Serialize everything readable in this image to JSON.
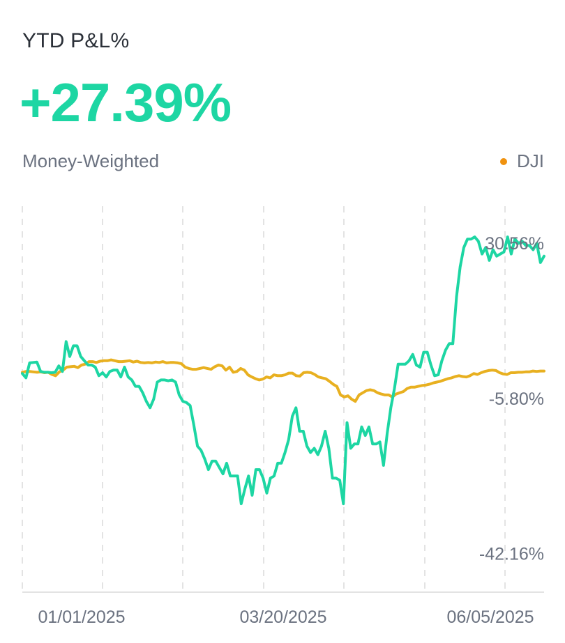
{
  "header": {
    "title": "YTD P&L%",
    "value": "+27.39%",
    "subtitle": "Money-Weighted"
  },
  "legend": {
    "label": "DJI",
    "color": "#f0920e"
  },
  "colors": {
    "portfolio": "#1dd6a3",
    "benchmark": "#e8b020",
    "grid": "#e3e3e3",
    "baseline": "#e3e3e3",
    "value_text": "#1dd6a3"
  },
  "chart_data": {
    "type": "line",
    "x_tick_labels": [
      "01/01/2025",
      "03/20/2025",
      "06/05/2025"
    ],
    "reference_labels": [
      {
        "text": "30.56%",
        "value": 30.56
      },
      {
        "text": "-5.80%",
        "value": -5.8
      },
      {
        "text": "-42.16%",
        "value": -42.16
      }
    ],
    "ylim": [
      -45,
      33
    ],
    "grid": "vertical dashed",
    "legend_placement": "top-right",
    "series": [
      {
        "values": [
          0.0,
          -1.0,
          2.5,
          2.6,
          2.7,
          0.5,
          0.3,
          0.3,
          0.2,
          0.3,
          1.8,
          0.5,
          7.5,
          4.0,
          6.5,
          6.5,
          4.0,
          3.0,
          2.0,
          2.0,
          1.5,
          -0.5,
          0.2,
          -0.8,
          0.5,
          0.8,
          0.8,
          -0.8,
          1.5,
          -0.8,
          -1.5,
          -3.0,
          -3.0,
          -4.5,
          -6.5,
          -8.0,
          -6.0,
          -2.0,
          -1.5,
          -1.5,
          -1.7,
          -1.5,
          -2.0,
          -5.0,
          -6.5,
          -6.8,
          -7.5,
          -12.0,
          -17.0,
          -18.0,
          -20.0,
          -22.5,
          -20.5,
          -20.5,
          -22.0,
          -23.5,
          -21.0,
          -24.0,
          -24.0,
          -24.0,
          -30.5,
          -27.0,
          -24.0,
          -28.5,
          -22.5,
          -22.5,
          -24.5,
          -28.0,
          -24.5,
          -24.0,
          -21.0,
          -21.0,
          -18.5,
          -15.5,
          -10.0,
          -8.0,
          -13.5,
          -13.5,
          -17.0,
          -18.5,
          -17.5,
          -19.0,
          -17.0,
          -13.5,
          -17.5,
          -24.5,
          -24.5,
          -25.0,
          -30.5,
          -11.5,
          -17.5,
          -16.5,
          -16.5,
          -12.5,
          -14.5,
          -12.5,
          -16.5,
          -16.5,
          -16.0,
          -21.5,
          -14.0,
          -8.0,
          -3.5,
          2.2,
          2.2,
          2.2,
          3.0,
          4.5,
          2.0,
          1.5,
          5.0,
          5.0,
          2.0,
          -0.5,
          -0.3,
          3.0,
          5.5,
          7.0,
          7.0,
          18.0,
          25.0,
          29.5,
          31.5,
          31.5,
          32.0,
          31.0,
          28.0,
          29.5,
          26.5,
          29.0,
          27.5,
          28.0,
          28.5,
          32.0,
          28.0,
          31.5,
          30.5,
          31.0,
          30.0,
          30.0,
          29.0,
          30.5,
          26.0,
          27.5
        ]
      },
      {
        "values": [
          0.3,
          0.5,
          0.5,
          0.4,
          0.3,
          0.4,
          0.2,
          0.3,
          -0.2,
          -0.5,
          0.4,
          0.8,
          1.5,
          1.6,
          1.7,
          1.4,
          2.0,
          2.2,
          2.8,
          2.8,
          2.6,
          2.9,
          3.0,
          3.0,
          3.2,
          3.0,
          2.8,
          2.8,
          2.9,
          3.0,
          2.7,
          2.9,
          2.6,
          2.5,
          2.6,
          2.5,
          2.7,
          2.6,
          2.8,
          2.5,
          2.6,
          2.6,
          2.5,
          2.3,
          1.5,
          1.2,
          1.0,
          1.0,
          1.2,
          1.4,
          1.2,
          1.0,
          1.6,
          2.0,
          1.8,
          0.8,
          1.5,
          0.3,
          0.5,
          1.2,
          0.8,
          -0.3,
          -0.8,
          -1.2,
          -1.5,
          -1.3,
          -0.8,
          -1.0,
          -0.3,
          -0.5,
          -0.5,
          -0.3,
          0.1,
          0.1,
          -0.5,
          -0.6,
          0.2,
          0.3,
          0.2,
          -0.2,
          -0.8,
          -1.0,
          -1.2,
          -1.8,
          -2.5,
          -3.0,
          -5.0,
          -5.5,
          -5.2,
          -6.0,
          -6.5,
          -5.0,
          -4.5,
          -4.0,
          -3.8,
          -4.0,
          -4.5,
          -4.8,
          -5.0,
          -5.0,
          -5.5,
          -4.8,
          -4.5,
          -4.2,
          -3.5,
          -3.2,
          -3.2,
          -3.0,
          -2.8,
          -2.7,
          -2.5,
          -2.2,
          -2.0,
          -1.8,
          -1.5,
          -1.2,
          -1.0,
          -0.7,
          -0.5,
          -0.7,
          -0.8,
          -0.5,
          0.0,
          -0.2,
          0.2,
          0.5,
          0.7,
          0.8,
          0.7,
          0.2,
          -0.1,
          -0.2,
          0.2,
          0.2,
          0.3,
          0.3,
          0.4,
          0.4,
          0.6,
          0.5,
          0.6,
          0.6
        ]
      }
    ]
  }
}
